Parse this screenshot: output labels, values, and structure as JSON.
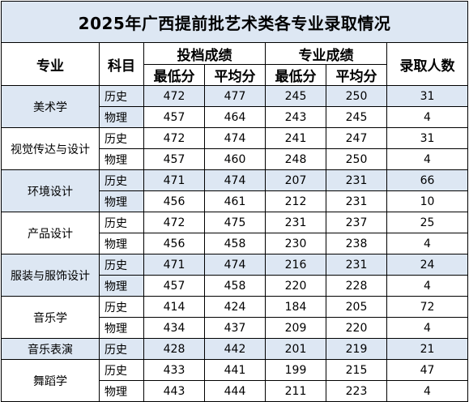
{
  "title": "2025年广西提前批艺术类各专业录取情况",
  "headers": {
    "major": "专业",
    "subject": "科目",
    "file_score": "投档成绩",
    "prof_score": "专业成绩",
    "min": "最低分",
    "avg": "平均分",
    "admitted": "录取人数"
  },
  "majors": [
    {
      "name": "美术学",
      "rows": [
        {
          "subject": "历史",
          "file_min": "472",
          "file_avg": "477",
          "prof_min": "245",
          "prof_avg": "250",
          "count": "31"
        },
        {
          "subject": "物理",
          "file_min": "457",
          "file_avg": "464",
          "prof_min": "243",
          "prof_avg": "245",
          "count": "4"
        }
      ]
    },
    {
      "name": "视觉传达与设计",
      "rows": [
        {
          "subject": "历史",
          "file_min": "472",
          "file_avg": "474",
          "prof_min": "241",
          "prof_avg": "247",
          "count": "31"
        },
        {
          "subject": "物理",
          "file_min": "457",
          "file_avg": "460",
          "prof_min": "248",
          "prof_avg": "250",
          "count": "4"
        }
      ]
    },
    {
      "name": "环境设计",
      "rows": [
        {
          "subject": "历史",
          "file_min": "471",
          "file_avg": "474",
          "prof_min": "207",
          "prof_avg": "231",
          "count": "66"
        },
        {
          "subject": "物理",
          "file_min": "456",
          "file_avg": "461",
          "prof_min": "212",
          "prof_avg": "231",
          "count": "10"
        }
      ]
    },
    {
      "name": "产品设计",
      "rows": [
        {
          "subject": "历史",
          "file_min": "472",
          "file_avg": "475",
          "prof_min": "231",
          "prof_avg": "237",
          "count": "25"
        },
        {
          "subject": "物理",
          "file_min": "456",
          "file_avg": "458",
          "prof_min": "230",
          "prof_avg": "238",
          "count": "4"
        }
      ]
    },
    {
      "name": "服装与服饰设计",
      "rows": [
        {
          "subject": "历史",
          "file_min": "471",
          "file_avg": "474",
          "prof_min": "216",
          "prof_avg": "231",
          "count": "24"
        },
        {
          "subject": "物理",
          "file_min": "457",
          "file_avg": "458",
          "prof_min": "220",
          "prof_avg": "228",
          "count": "4"
        }
      ]
    },
    {
      "name": "音乐学",
      "rows": [
        {
          "subject": "历史",
          "file_min": "414",
          "file_avg": "424",
          "prof_min": "184",
          "prof_avg": "205",
          "count": "72"
        },
        {
          "subject": "物理",
          "file_min": "434",
          "file_avg": "437",
          "prof_min": "209",
          "prof_avg": "220",
          "count": "4"
        }
      ]
    },
    {
      "name": "音乐表演",
      "rows": [
        {
          "subject": "历史",
          "file_min": "428",
          "file_avg": "442",
          "prof_min": "201",
          "prof_avg": "219",
          "count": "21"
        }
      ]
    },
    {
      "name": "舞蹈学",
      "rows": [
        {
          "subject": "历史",
          "file_min": "433",
          "file_avg": "441",
          "prof_min": "199",
          "prof_avg": "215",
          "count": "47"
        },
        {
          "subject": "物理",
          "file_min": "443",
          "file_avg": "444",
          "prof_min": "211",
          "prof_avg": "223",
          "count": "4"
        }
      ]
    }
  ],
  "colors": {
    "shade": "#dde7f3",
    "border": "#000000"
  }
}
